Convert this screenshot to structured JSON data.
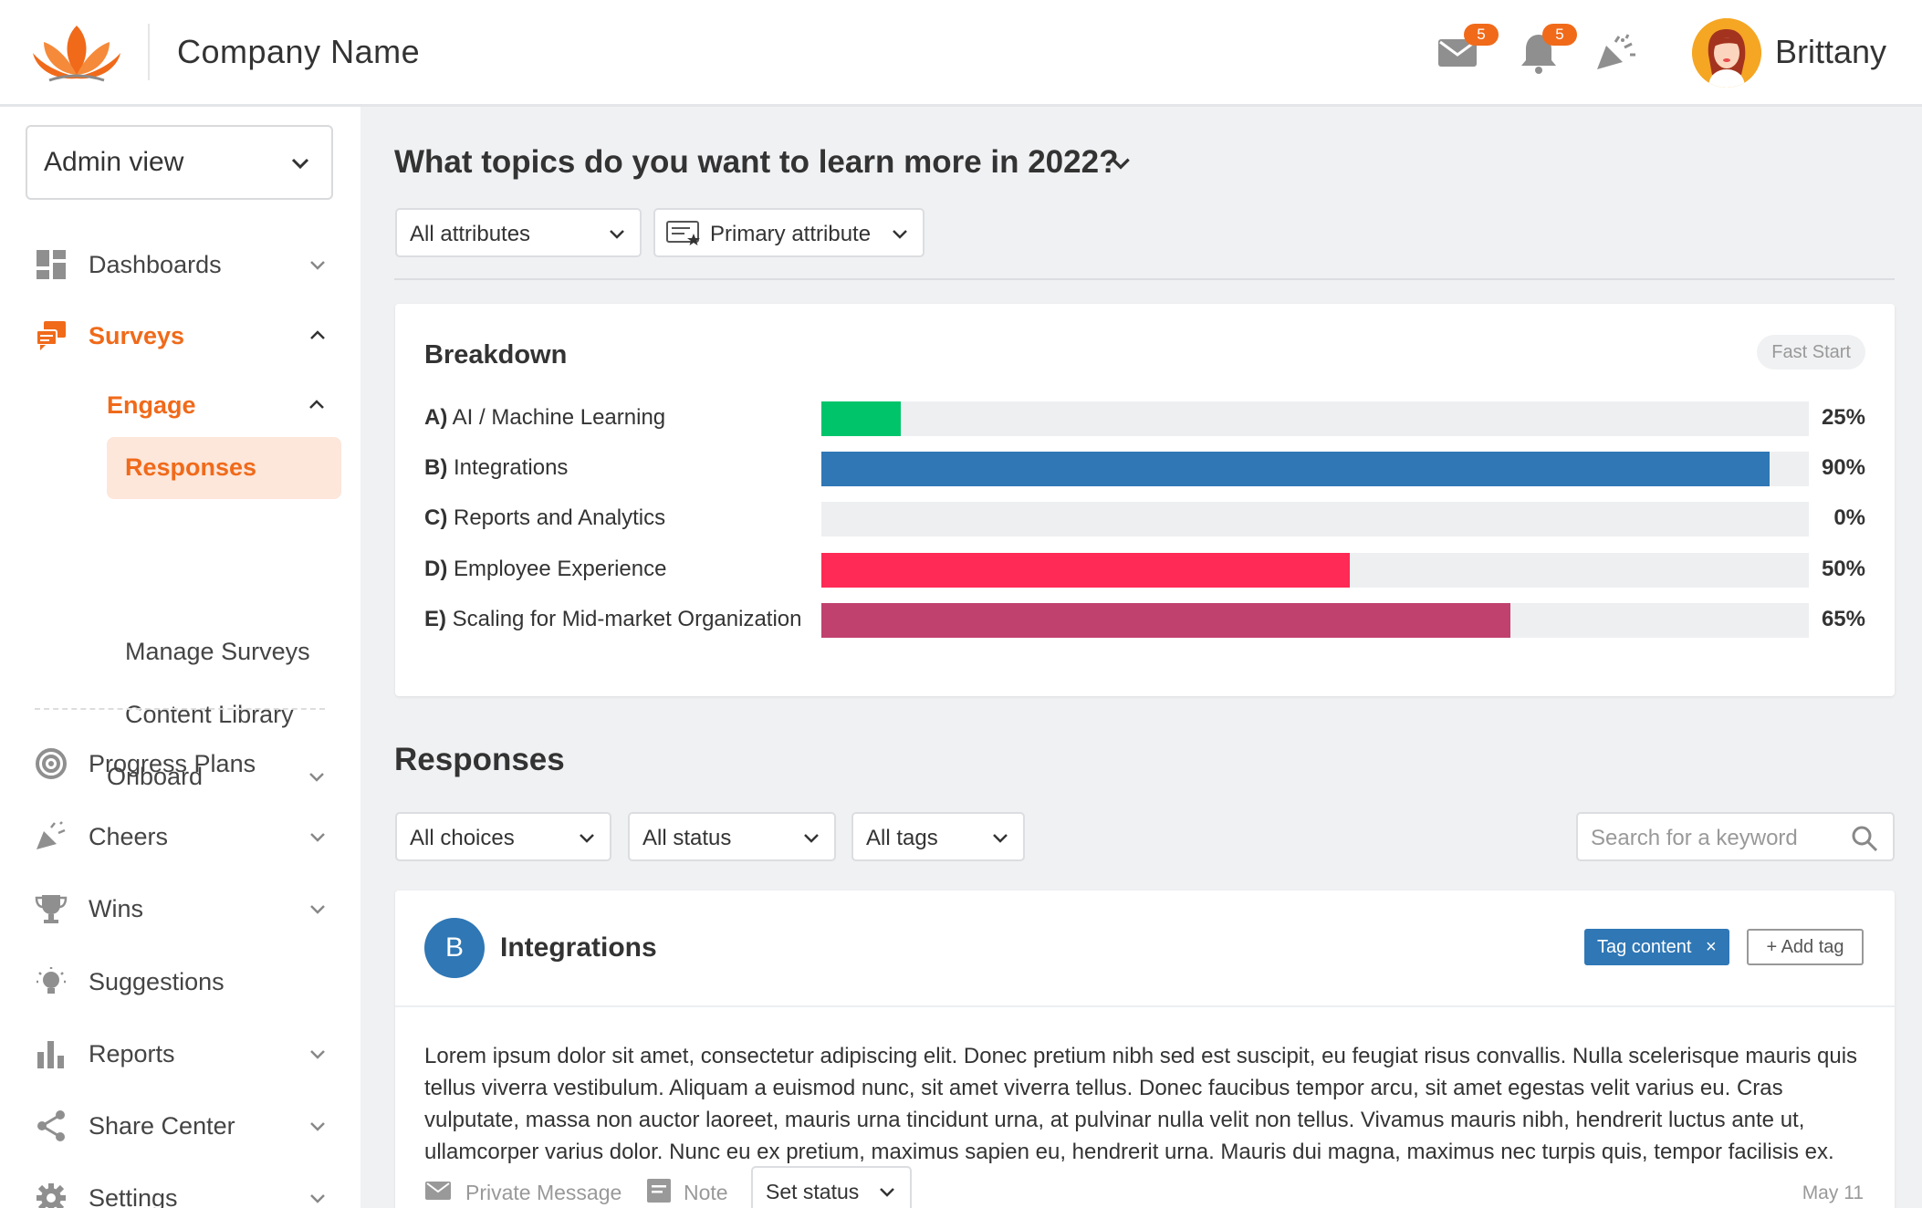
{
  "colors": {
    "accent": "#f06a1a",
    "accent_light": "#fde6da",
    "bar_green": "#00c46a",
    "bar_blue": "#2f77b5",
    "bar_red": "#ff2a55",
    "bar_maroon": "#c0406e"
  },
  "header": {
    "company": "Company Name",
    "mail_badge": "5",
    "bell_badge": "5",
    "username": "Brittany"
  },
  "sidebar": {
    "view_select": "Admin view",
    "items": [
      {
        "label": "Dashboards",
        "icon": "dashboard-icon"
      },
      {
        "label": "Surveys",
        "icon": "survey-icon"
      },
      {
        "label": "Progress Plans",
        "icon": "target-icon"
      },
      {
        "label": "Cheers",
        "icon": "megaphone-icon"
      },
      {
        "label": "Wins",
        "icon": "trophy-icon"
      },
      {
        "label": "Suggestions",
        "icon": "lightbulb-icon"
      },
      {
        "label": "Reports",
        "icon": "bar-chart-icon"
      },
      {
        "label": "Share Center",
        "icon": "share-icon"
      },
      {
        "label": "Settings",
        "icon": "gear-icon"
      }
    ],
    "surveys_sub": {
      "engage": "Engage",
      "engage_items": [
        "Responses",
        "Manage Surveys",
        "Content Library"
      ],
      "onboard": "Onboard"
    }
  },
  "main": {
    "question": "What topics do you want to learn more in 2022?",
    "filter_attributes": "All attributes",
    "filter_primary": "Primary attribute",
    "breakdown": {
      "title": "Breakdown",
      "pill": "Fast Start"
    },
    "responses_title": "Responses",
    "filters": {
      "choices": "All choices",
      "status": "All status",
      "tags": "All tags",
      "search_placeholder": "Search for a keyword"
    },
    "response": {
      "avatar_letter": "B",
      "name": "Integrations",
      "tag": "Tag content",
      "tag_remove": "×",
      "add_tag": "+ Add tag",
      "body": "Lorem ipsum dolor sit amet, consectetur adipiscing elit. Donec pretium nibh sed est suscipit, eu feugiat risus convallis. Nulla scelerisque mauris quis tellus viverra vestibulum. Aliquam a euismod nunc, sit amet viverra tellus. Donec faucibus tempor arcu, sit amet egestas velit varius eu. Cras vulputate, massa non auctor laoreet, mauris urna tincidunt urna, at pulvinar nulla velit non tellus. Vivamus mauris nibh, hendrerit luctus ante ut, ullamcorper varius dolor. Nunc eu ex pretium, maximus sapien eu, hendrerit urna. Mauris dui magna, maximus nec turpis quis, tempor facilisis ex.",
      "private_message": "Private Message",
      "note": "Note",
      "set_status": "Set status",
      "date": "May 11"
    }
  },
  "chart_data": {
    "type": "bar",
    "title": "Breakdown",
    "categories": [
      "A) AI / Machine Learning",
      "B) Integrations",
      "C) Reports and Analytics",
      "D) Employee Experience",
      "E) Scaling for Mid-market Organization"
    ],
    "values": [
      25,
      90,
      0,
      50,
      65
    ],
    "labels": [
      "25%",
      "90%",
      "0%",
      "50%",
      "65%"
    ],
    "colors": [
      "#00c46a",
      "#2f77b5",
      "#2f77b5",
      "#ff2a55",
      "#c0406e"
    ],
    "ylim": [
      0,
      100
    ],
    "bar_fill_fraction": [
      0.08,
      0.96,
      0,
      0.535,
      0.698
    ]
  }
}
